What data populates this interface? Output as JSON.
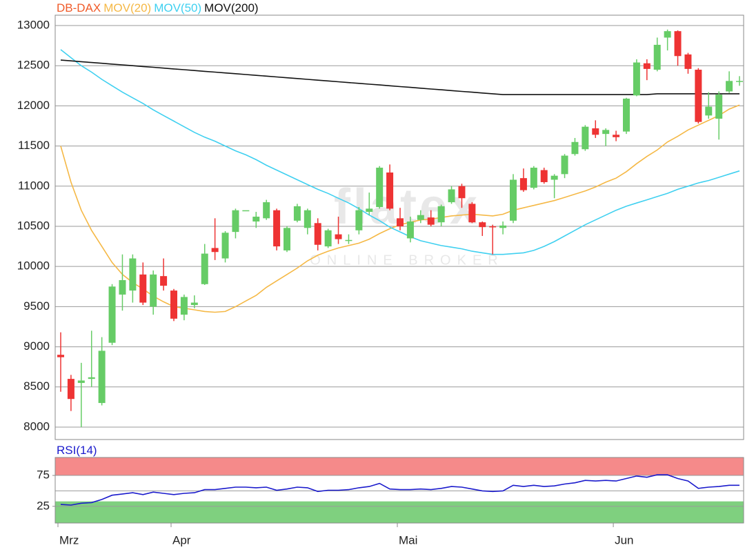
{
  "chart_data": [
    {
      "type": "candlestick",
      "watermark": {
        "logo": "flatex",
        "tagline": "ONLINE BROKER"
      },
      "categories": [
        "Mrz",
        null,
        null,
        null,
        null,
        null,
        null,
        null,
        null,
        null,
        null,
        "Apr",
        null,
        null,
        null,
        null,
        null,
        null,
        null,
        null,
        null,
        null,
        null,
        null,
        null,
        null,
        null,
        null,
        null,
        null,
        null,
        null,
        null,
        "Mai",
        null,
        null,
        null,
        null,
        null,
        null,
        null,
        null,
        null,
        null,
        null,
        null,
        null,
        null,
        null,
        null,
        null,
        null,
        null,
        null,
        "Jun",
        null,
        null,
        null,
        null,
        null,
        null,
        null,
        null,
        null,
        null,
        null,
        null
      ],
      "series": [
        {
          "name": "DB-DAX",
          "color": "#f05a28",
          "up_color": "#66cc66",
          "down_color": "#ee3333",
          "open": [
            8900,
            8600,
            8550,
            8600,
            8300,
            9050,
            9650,
            9700,
            9900,
            9500,
            9880,
            9700,
            9400,
            9520,
            9780,
            10230,
            10100,
            10430,
            10700,
            10560,
            10600,
            10700,
            10200,
            10570,
            10480,
            10540,
            10250,
            10400,
            10320,
            10450,
            10680,
            10740,
            11170,
            10600,
            10350,
            10580,
            10610,
            10550,
            10800,
            11000,
            10780,
            10550,
            10500,
            10480,
            10570,
            11100,
            10980,
            11200,
            11080,
            11150,
            11400,
            11460,
            11720,
            11650,
            11640,
            11680,
            12130,
            12530,
            12450,
            12850,
            12930,
            12640,
            12450,
            11880,
            11840,
            12180,
            12300
          ],
          "high": [
            9180,
            8650,
            8800,
            9200,
            9120,
            9780,
            10150,
            10150,
            10050,
            9950,
            10100,
            9720,
            9650,
            9640,
            10280,
            10600,
            10440,
            10720,
            10700,
            10680,
            10830,
            10720,
            10500,
            10780,
            10720,
            10600,
            10470,
            10620,
            10400,
            10740,
            10920,
            11250,
            11270,
            10730,
            10620,
            10700,
            10700,
            10770,
            11000,
            11030,
            10800,
            10560,
            10520,
            10560,
            11150,
            11220,
            11250,
            11230,
            11150,
            11400,
            11600,
            11760,
            11820,
            11720,
            11690,
            12100,
            12580,
            12580,
            12850,
            12950,
            12940,
            12660,
            12470,
            12170,
            12180,
            12430,
            12370
          ],
          "low": [
            8440,
            8200,
            8000,
            8500,
            8270,
            9020,
            9450,
            9550,
            9520,
            9400,
            9700,
            9320,
            9330,
            9480,
            9770,
            10080,
            10050,
            10350,
            10700,
            10480,
            10580,
            10200,
            10180,
            10550,
            10400,
            10200,
            10230,
            10280,
            10280,
            10400,
            10640,
            10720,
            10700,
            10450,
            10300,
            10540,
            10500,
            10500,
            10780,
            10730,
            10540,
            10380,
            10150,
            10400,
            10540,
            10930,
            10960,
            11030,
            10850,
            11100,
            11380,
            11440,
            11600,
            11500,
            11560,
            11650,
            12120,
            12320,
            12430,
            12690,
            12500,
            12400,
            11780,
            11840,
            11580,
            12160,
            12250
          ],
          "close": [
            8870,
            8350,
            8580,
            8620,
            8950,
            9750,
            9830,
            10100,
            9550,
            9900,
            9760,
            9350,
            9620,
            9550,
            10160,
            10180,
            10420,
            10700,
            10700,
            10620,
            10800,
            10250,
            10480,
            10750,
            10700,
            10270,
            10450,
            10340,
            10330,
            10700,
            10720,
            11230,
            10720,
            10500,
            10560,
            10640,
            10520,
            10750,
            10960,
            10850,
            10550,
            10490,
            10490,
            10510,
            11080,
            10950,
            11230,
            11050,
            11130,
            11380,
            11550,
            11740,
            11640,
            11700,
            11610,
            12090,
            12540,
            12460,
            12760,
            12930,
            12620,
            12460,
            11800,
            11990,
            12140,
            12310,
            12310
          ]
        },
        {
          "name": "MOV(20)",
          "color": "#f5b845",
          "values": [
            11500,
            11050,
            10700,
            10450,
            10250,
            10050,
            9900,
            9800,
            9720,
            9630,
            9560,
            9500,
            9480,
            9460,
            9440,
            9430,
            9440,
            9500,
            9570,
            9640,
            9740,
            9820,
            9900,
            9980,
            10070,
            10140,
            10190,
            10230,
            10260,
            10290,
            10340,
            10410,
            10470,
            10520,
            10550,
            10580,
            10590,
            10610,
            10630,
            10640,
            10650,
            10640,
            10630,
            10650,
            10700,
            10730,
            10760,
            10790,
            10820,
            10860,
            10900,
            10940,
            10990,
            11050,
            11100,
            11180,
            11280,
            11370,
            11450,
            11550,
            11620,
            11700,
            11760,
            11820,
            11880,
            11960,
            12010
          ]
        },
        {
          "name": "MOV(50)",
          "color": "#3fd0f0",
          "values": [
            12700,
            12600,
            12500,
            12420,
            12330,
            12250,
            12170,
            12100,
            12030,
            11950,
            11880,
            11810,
            11740,
            11670,
            11610,
            11560,
            11500,
            11440,
            11390,
            11330,
            11260,
            11200,
            11140,
            11080,
            11020,
            10960,
            10910,
            10850,
            10790,
            10720,
            10640,
            10570,
            10490,
            10430,
            10370,
            10320,
            10290,
            10260,
            10240,
            10220,
            10190,
            10170,
            10150,
            10150,
            10160,
            10170,
            10200,
            10250,
            10310,
            10380,
            10450,
            10520,
            10580,
            10640,
            10700,
            10750,
            10790,
            10830,
            10870,
            10910,
            10960,
            11000,
            11040,
            11070,
            11110,
            11150,
            11190
          ]
        },
        {
          "name": "MOV(200)",
          "color": "#111111",
          "values": [
            12570,
            12560,
            12550,
            12540,
            12530,
            12520,
            12510,
            12500,
            12490,
            12480,
            12470,
            12460,
            12450,
            12440,
            12430,
            12420,
            12410,
            12400,
            12390,
            12380,
            12370,
            12360,
            12350,
            12340,
            12330,
            12320,
            12310,
            12300,
            12290,
            12280,
            12270,
            12260,
            12250,
            12240,
            12230,
            12220,
            12210,
            12200,
            12190,
            12180,
            12170,
            12160,
            12150,
            12140,
            12140,
            12140,
            12140,
            12140,
            12140,
            12140,
            12140,
            12140,
            12140,
            12140,
            12140,
            12140,
            12140,
            12140,
            12150,
            12150,
            12150,
            12150,
            12150,
            12150,
            12150,
            12150,
            12150
          ]
        }
      ],
      "ylim": [
        7845,
        13129
      ],
      "yticks": [
        8000,
        8500,
        9000,
        9500,
        10000,
        10500,
        11000,
        11500,
        12000,
        12500,
        13000
      ],
      "grid": true
    },
    {
      "type": "line",
      "series": [
        {
          "name": "RSI(14)",
          "color": "#1a1acc",
          "values": [
            28,
            27,
            30,
            31,
            36,
            43,
            45,
            47,
            44,
            48,
            46,
            44,
            46,
            47,
            52,
            52,
            54,
            56,
            56,
            55,
            56,
            51,
            53,
            56,
            55,
            49,
            51,
            51,
            52,
            55,
            57,
            62,
            53,
            52,
            52,
            53,
            52,
            54,
            57,
            56,
            53,
            50,
            49,
            50,
            59,
            57,
            59,
            57,
            58,
            61,
            63,
            67,
            66,
            67,
            66,
            70,
            74,
            72,
            76,
            76,
            70,
            66,
            54,
            56,
            57,
            59,
            59
          ]
        }
      ],
      "ylim": [
        -2,
        104
      ],
      "yticks": [
        25,
        75
      ],
      "grid_values": [
        25,
        50,
        75
      ],
      "zones": [
        {
          "from": 75,
          "to": 104,
          "color": "#f58a8a"
        },
        {
          "from": -2,
          "to": 33,
          "color": "#7fd07f"
        }
      ]
    }
  ]
}
